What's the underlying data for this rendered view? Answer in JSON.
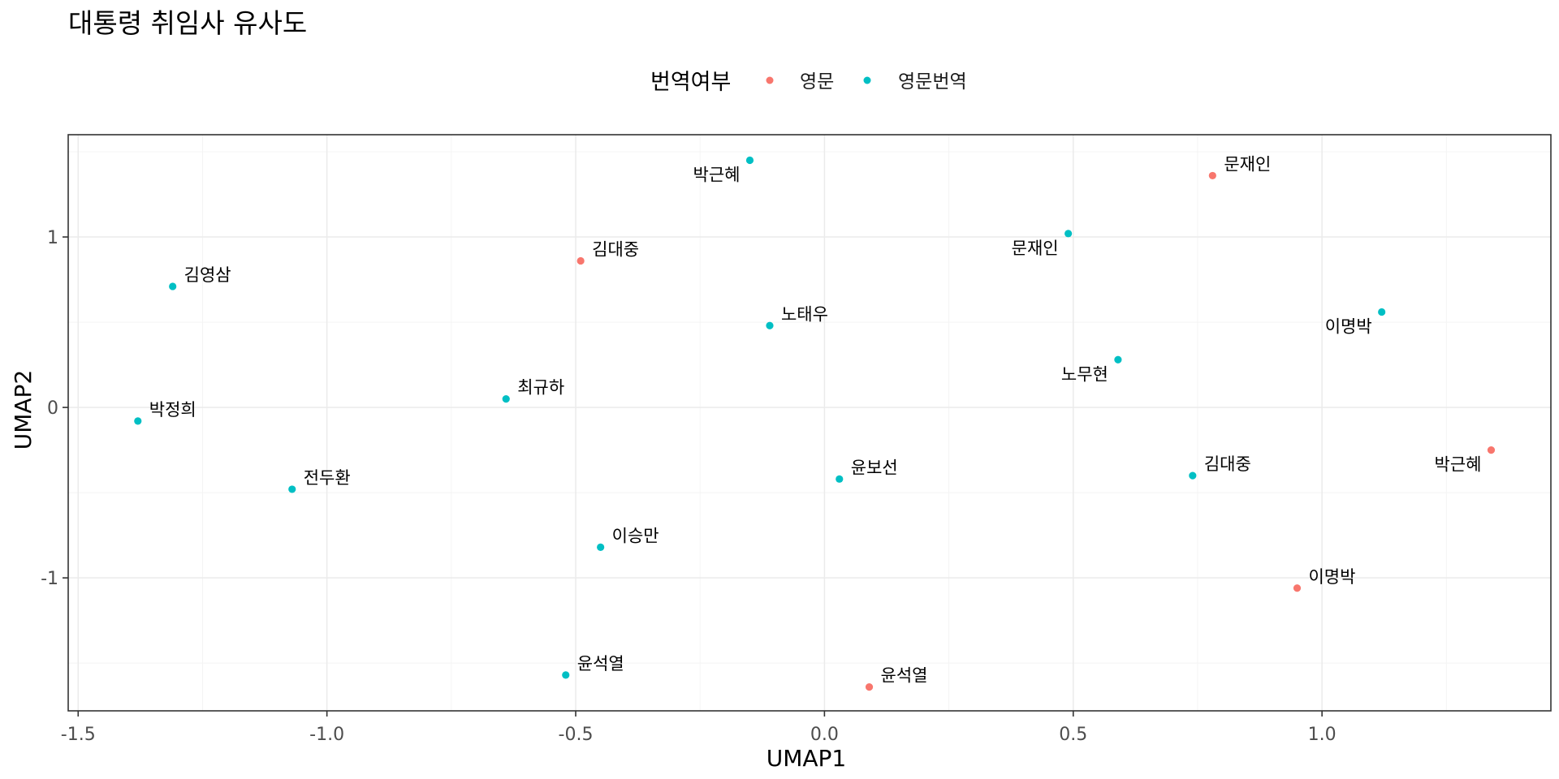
{
  "chart_data": {
    "type": "scatter",
    "title": "대통령 취임사 유사도",
    "xlabel": "UMAP1",
    "ylabel": "UMAP2",
    "xlim": [
      -1.52,
      1.46
    ],
    "ylim": [
      -1.78,
      1.6
    ],
    "x_ticks": [
      -1.5,
      -1.0,
      -0.5,
      0.0,
      0.5,
      1.0
    ],
    "x_tick_labels": [
      "-1.5",
      "-1.0",
      "-0.5",
      "0.0",
      "0.5",
      "1.0"
    ],
    "y_ticks": [
      -1,
      0,
      1
    ],
    "y_tick_labels": [
      "-1",
      "0",
      "1"
    ],
    "grid": true,
    "legend": {
      "title": "번역여부",
      "position": "top",
      "entries": [
        {
          "name": "영문",
          "color": "#F8766D"
        },
        {
          "name": "영문번역",
          "color": "#00BFC4"
        }
      ]
    },
    "series": [
      {
        "name": "영문",
        "color": "#F8766D",
        "points": [
          {
            "label": "문재인",
            "x": 0.78,
            "y": 1.36
          },
          {
            "label": "김대중",
            "x": -0.49,
            "y": 0.86
          },
          {
            "label": "박근혜",
            "x": 1.34,
            "y": -0.25
          },
          {
            "label": "이명박",
            "x": 0.95,
            "y": -1.06
          },
          {
            "label": "윤석열",
            "x": 0.09,
            "y": -1.64
          }
        ]
      },
      {
        "name": "영문번역",
        "color": "#00BFC4",
        "points": [
          {
            "label": "박근혜",
            "x": -0.15,
            "y": 1.45
          },
          {
            "label": "문재인",
            "x": 0.49,
            "y": 1.02
          },
          {
            "label": "김영삼",
            "x": -1.31,
            "y": 0.71
          },
          {
            "label": "노태우",
            "x": -0.11,
            "y": 0.48
          },
          {
            "label": "이명박",
            "x": 1.12,
            "y": 0.56
          },
          {
            "label": "노무현",
            "x": 0.59,
            "y": 0.28
          },
          {
            "label": "최규하",
            "x": -0.64,
            "y": 0.05
          },
          {
            "label": "박정희",
            "x": -1.38,
            "y": -0.08
          },
          {
            "label": "김대중",
            "x": 0.74,
            "y": -0.4
          },
          {
            "label": "윤보선",
            "x": 0.03,
            "y": -0.42
          },
          {
            "label": "전두환",
            "x": -1.07,
            "y": -0.48
          },
          {
            "label": "이승만",
            "x": -0.45,
            "y": -0.82
          },
          {
            "label": "윤석열",
            "x": -0.52,
            "y": -1.57
          }
        ]
      }
    ]
  }
}
